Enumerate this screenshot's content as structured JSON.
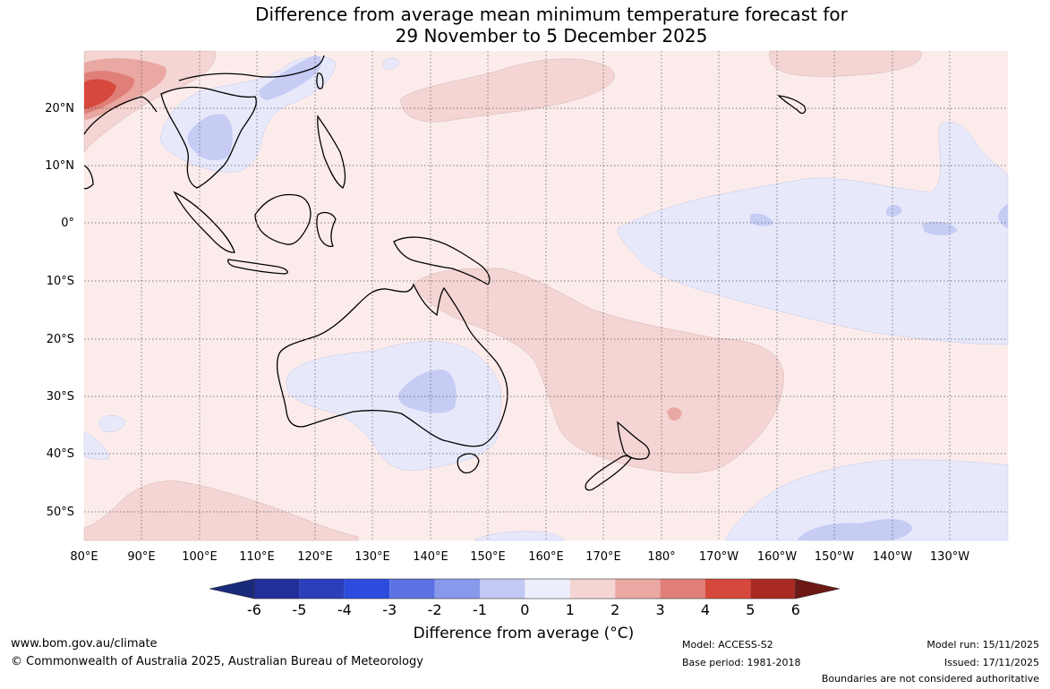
{
  "title": {
    "line1": "Difference from average mean minimum temperature forecast for",
    "line2": "29 November to 5 December 2025"
  },
  "map": {
    "lon_ticks": [
      "80°E",
      "90°E",
      "100°E",
      "110°E",
      "120°E",
      "130°E",
      "140°E",
      "150°E",
      "160°E",
      "170°E",
      "180°",
      "170°W",
      "160°W",
      "150°W",
      "140°W",
      "130°W"
    ],
    "lat_ticks": [
      "20°N",
      "10°N",
      "0°",
      "10°S",
      "20°S",
      "30°S",
      "40°S",
      "50°S"
    ],
    "colors": {
      "ocean_neutral": "#fbeceb",
      "warm_1": "#f4d5d3",
      "warm_2": "#e9a8a2",
      "warm_3": "#e07f78",
      "warm_4": "#d7483c",
      "cool_1": "#e7e9fb",
      "cool_2": "#c6ccf4",
      "cool_3": "#a9b3f0"
    }
  },
  "colorbar": {
    "labels": [
      "-6",
      "-5",
      "-4",
      "-3",
      "-2",
      "-1",
      "0",
      "1",
      "2",
      "3",
      "4",
      "5",
      "6"
    ],
    "colors": [
      "#222e9c",
      "#2b3fbc",
      "#2c4cde",
      "#5c72e4",
      "#8898ea",
      "#c3c9f5",
      "#eceefc",
      "#fcf1f0",
      "#f4d5d3",
      "#e9a8a2",
      "#e07f78",
      "#d7483c",
      "#a82a23"
    ],
    "min_arrow_color": "#1a2a7a",
    "max_arrow_color": "#6d1a17",
    "title": "Difference from average (°C)"
  },
  "footer": {
    "website": "www.bom.gov.au/climate",
    "copyright": "© Commonwealth of Australia 2025, Australian Bureau of Meteorology",
    "model": "Model: ACCESS-S2",
    "base_period": "Base period: 1981-2018",
    "model_run": "Model run: 15/11/2025",
    "issued": "Issued: 17/11/2025",
    "disclaimer": "Boundaries are not considered authoritative"
  }
}
